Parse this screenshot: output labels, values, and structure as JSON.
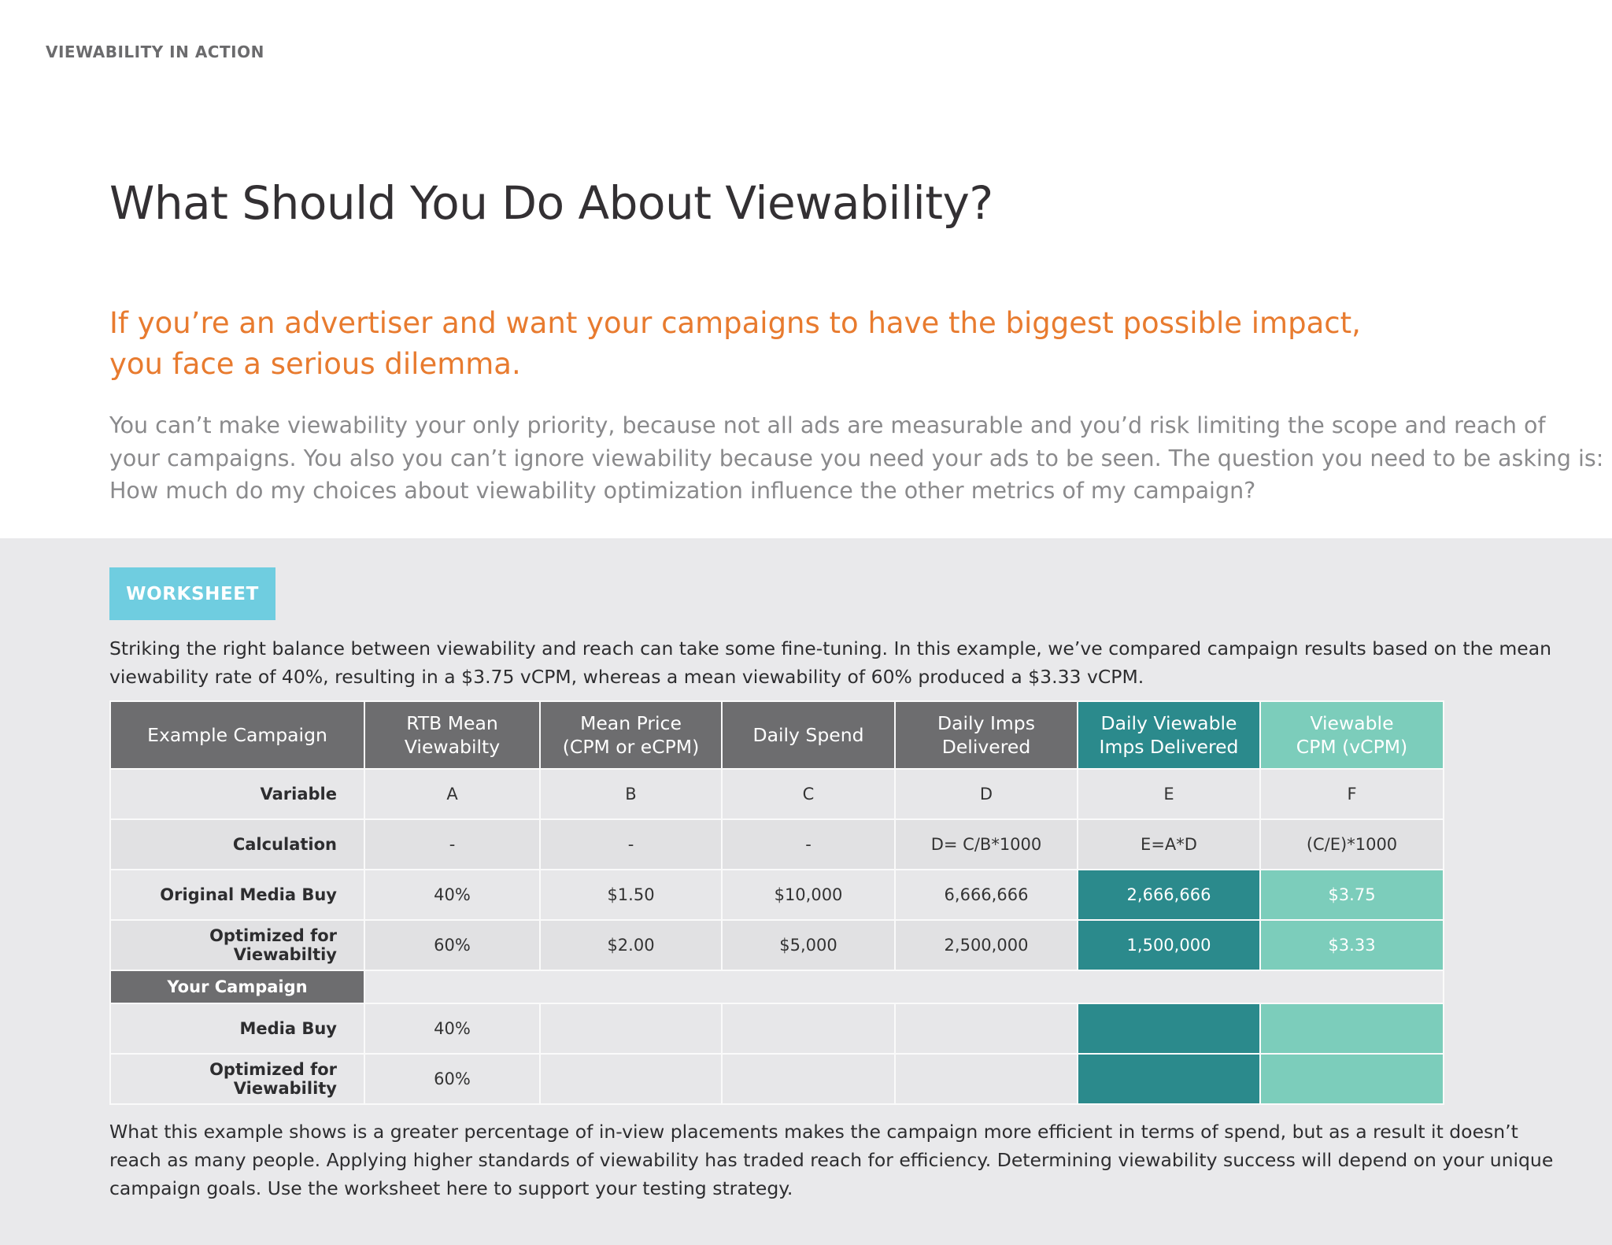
{
  "eyebrow": "VIEWABILITY IN ACTION",
  "title": "What Should You Do About Viewability?",
  "lead": [
    "If you’re an advertiser and want your campaigns to have the biggest possible impact,",
    "you face a serious dilemma."
  ],
  "intro": [
    "You can’t make viewability your only priority, because not all ads are measurable and you’d risk limiting the scope and reach of",
    "your campaigns. You also you can’t ignore viewability because you need your ads to be seen. The question you need to be asking is:",
    "How much do my choices about viewability optimization influence the other metrics of my campaign?"
  ],
  "worksheet": {
    "badge": "WORKSHEET",
    "text_before": [
      "Striking the right balance between viewability and reach can take some fine-tuning. In this example, we’ve compared campaign results based on the mean",
      "viewability rate of 40%, resulting in a $3.75 vCPM, whereas a mean viewability of 60% produced a $3.33 vCPM."
    ],
    "text_after": [
      "What this example shows is a greater percentage of in-view placements makes the campaign more efficient in terms of spend, but as a result it doesn’t",
      "reach as many people. Applying higher standards of viewability has traded reach for efficiency. Determining viewability success will depend on your unique",
      "campaign goals. Use the worksheet here to support your testing strategy."
    ],
    "colors": {
      "viewable_imps": "#2b8a8c",
      "vcpm": "#7ccdbb",
      "header": "#6d6d6f",
      "badge": "#6fcde0",
      "accent": "#e87b2f"
    },
    "table": {
      "headers": [
        [
          "Example Campaign"
        ],
        [
          "RTB Mean",
          "Viewabilty"
        ],
        [
          "Mean Price",
          "(CPM or eCPM)"
        ],
        [
          "Daily Spend"
        ],
        [
          "Daily Imps",
          "Delivered"
        ],
        [
          "Daily Viewable",
          "Imps Delivered"
        ],
        [
          "Viewable",
          "CPM (vCPM)"
        ]
      ],
      "rows": [
        {
          "label": "Variable",
          "cells": [
            "A",
            "B",
            "C",
            "D",
            "E",
            "F"
          ]
        },
        {
          "label": "Calculation",
          "cells": [
            "-",
            "-",
            "-",
            "D= C/B*1000",
            "E=A*D",
            "(C/E)*1000"
          ]
        },
        {
          "label": "Original Media Buy",
          "cells": [
            "40%",
            "$1.50",
            "$10,000",
            "6,666,666",
            "2,666,666",
            "$3.75"
          ]
        },
        {
          "label": "Optimized for Viewabiltiy",
          "cells": [
            "60%",
            "$2.00",
            "$5,000",
            "2,500,000",
            "1,500,000",
            "$3.33"
          ]
        }
      ],
      "your_campaign_label": "Your Campaign",
      "your_rows": [
        {
          "label": "Media Buy",
          "cells": [
            "40%",
            "",
            "",
            "",
            "",
            ""
          ]
        },
        {
          "label": "Optimized for Viewability",
          "cells": [
            "60%",
            "",
            "",
            "",
            "",
            ""
          ]
        }
      ]
    }
  }
}
